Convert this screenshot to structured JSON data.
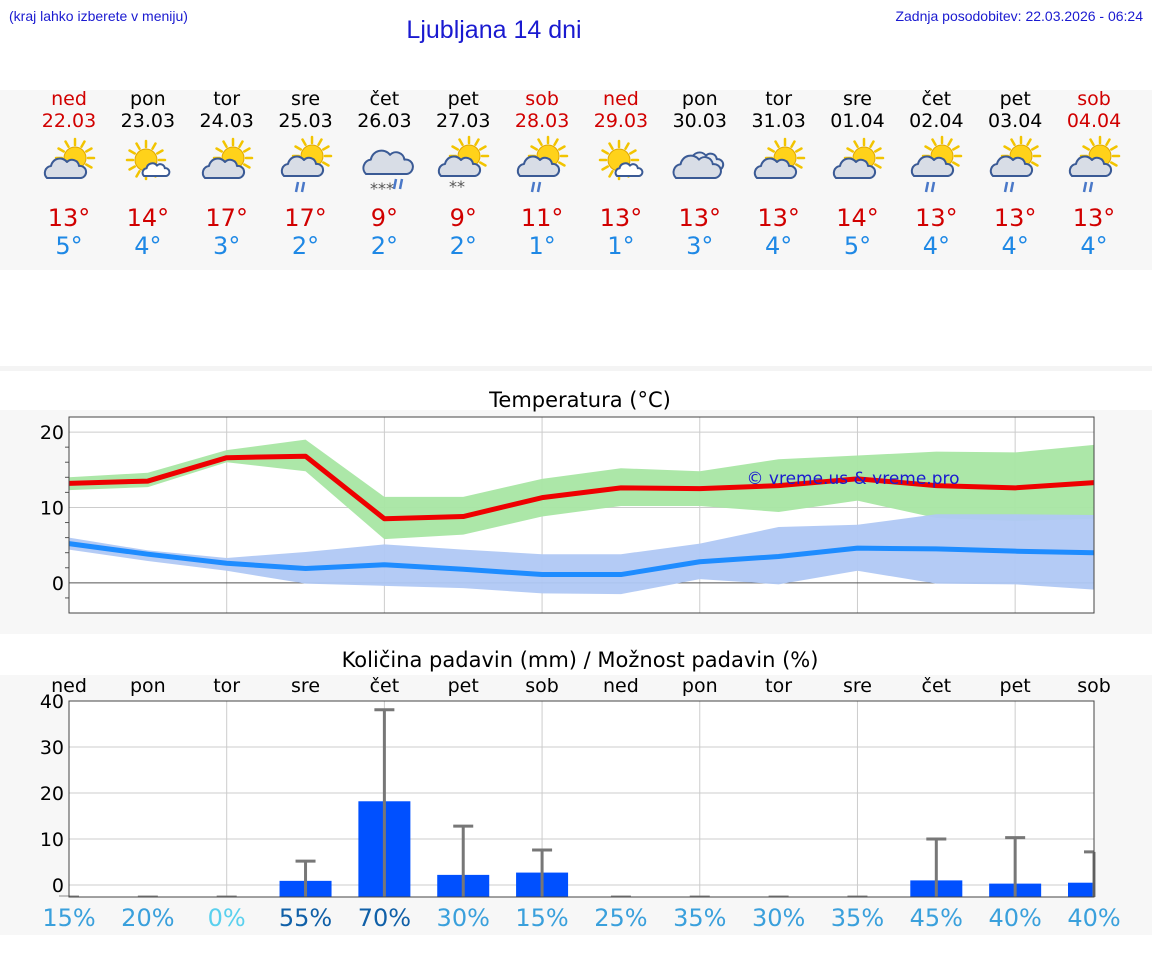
{
  "header": {
    "hint": "(kraj lahko izberete v meniju)",
    "title": "Ljubljana 14 dni",
    "updated": "Zadnja posodobitev: 22.03.2026 - 06:24"
  },
  "days": [
    {
      "name": "ned",
      "date": "22.03",
      "weekend": true,
      "icon": "partly-cloudy-icon",
      "hi": "13°",
      "lo": "5°"
    },
    {
      "name": "pon",
      "date": "23.03",
      "weekend": false,
      "icon": "sun-small-cloud-icon",
      "hi": "14°",
      "lo": "4°"
    },
    {
      "name": "tor",
      "date": "24.03",
      "weekend": false,
      "icon": "partly-cloudy-icon",
      "hi": "17°",
      "lo": "3°"
    },
    {
      "name": "sre",
      "date": "25.03",
      "weekend": false,
      "icon": "sun-cloud-rain-icon",
      "hi": "17°",
      "lo": "2°"
    },
    {
      "name": "čet",
      "date": "26.03",
      "weekend": false,
      "icon": "cloud-rain-snow-icon",
      "hi": "9°",
      "lo": "2°"
    },
    {
      "name": "pet",
      "date": "27.03",
      "weekend": false,
      "icon": "sun-cloud-snow-icon",
      "hi": "9°",
      "lo": "2°"
    },
    {
      "name": "sob",
      "date": "28.03",
      "weekend": true,
      "icon": "sun-cloud-rain-icon",
      "hi": "11°",
      "lo": "1°"
    },
    {
      "name": "ned",
      "date": "29.03",
      "weekend": true,
      "icon": "sun-small-cloud-icon",
      "hi": "13°",
      "lo": "1°"
    },
    {
      "name": "pon",
      "date": "30.03",
      "weekend": false,
      "icon": "cloudy-icon",
      "hi": "13°",
      "lo": "3°"
    },
    {
      "name": "tor",
      "date": "31.03",
      "weekend": false,
      "icon": "partly-cloudy-icon",
      "hi": "13°",
      "lo": "4°"
    },
    {
      "name": "sre",
      "date": "01.04",
      "weekend": false,
      "icon": "partly-cloudy-icon",
      "hi": "14°",
      "lo": "5°"
    },
    {
      "name": "čet",
      "date": "02.04",
      "weekend": false,
      "icon": "sun-cloud-rain-icon",
      "hi": "13°",
      "lo": "4°"
    },
    {
      "name": "pet",
      "date": "03.04",
      "weekend": false,
      "icon": "sun-cloud-rain-icon",
      "hi": "13°",
      "lo": "4°"
    },
    {
      "name": "sob",
      "date": "04.04",
      "weekend": true,
      "icon": "sun-cloud-rain-icon",
      "hi": "13°",
      "lo": "4°"
    }
  ],
  "colors": {
    "weekend": "#d10000",
    "hi_line": "#ee0000",
    "hi_band": "#a8e6a3",
    "lo_line": "#1e8cff",
    "lo_band": "#b0c8f4",
    "bar": "#0050ff",
    "whisker": "#777777"
  },
  "chart_data": [
    {
      "type": "line",
      "title": "Temperatura (°C)",
      "watermark": "© vreme.us & vreme.pro",
      "x": [
        0,
        1,
        2,
        3,
        4,
        5,
        6,
        7,
        8,
        9,
        10,
        11,
        12,
        13
      ],
      "ylim": [
        -4,
        22
      ],
      "yticks": [
        0,
        10,
        20
      ],
      "series": [
        {
          "values": [
            13.2,
            13.5,
            16.6,
            16.8,
            8.5,
            8.8,
            11.3,
            12.6,
            12.5,
            12.9,
            13.8,
            12.9,
            12.6,
            13.3
          ],
          "band_upper": [
            14.0,
            14.6,
            17.6,
            19.0,
            11.4,
            11.4,
            13.8,
            15.2,
            14.8,
            16.4,
            16.9,
            17.4,
            17.3,
            18.3
          ],
          "band_lower": [
            12.3,
            12.7,
            16.0,
            14.8,
            5.8,
            6.4,
            8.8,
            10.2,
            10.2,
            9.4,
            10.9,
            8.6,
            8.2,
            8.5
          ]
        },
        {
          "values": [
            5.2,
            3.8,
            2.6,
            1.9,
            2.4,
            1.8,
            1.1,
            1.1,
            2.8,
            3.5,
            4.6,
            4.5,
            4.2,
            4.0
          ],
          "band_upper": [
            6.0,
            4.3,
            3.3,
            4.1,
            5.1,
            4.4,
            3.8,
            3.8,
            5.2,
            7.4,
            7.7,
            9.1,
            9.1,
            9.0
          ],
          "band_lower": [
            4.4,
            2.9,
            1.6,
            -0.1,
            -0.4,
            -0.7,
            -1.4,
            -1.5,
            0.5,
            -0.2,
            1.6,
            -0.1,
            -0.2,
            -0.9
          ]
        }
      ],
      "grid": true
    },
    {
      "type": "bar",
      "title": "Količina padavin (mm) / Možnost padavin (%)",
      "categories": [
        "ned",
        "pon",
        "tor",
        "sre",
        "čet",
        "pet",
        "sob",
        "ned",
        "pon",
        "tor",
        "sre",
        "čet",
        "pet",
        "sob"
      ],
      "values": [
        0,
        0,
        0,
        0.9,
        18.2,
        2.2,
        2.7,
        0,
        0,
        0,
        0,
        1,
        0.3,
        0.5
      ],
      "whisker_max": [
        0,
        0,
        0,
        5.2,
        38.1,
        12.8,
        7.6,
        0,
        0,
        0,
        0,
        10.0,
        10.3,
        7.2
      ],
      "probability": [
        "15%",
        "20%",
        "0%",
        "55%",
        "70%",
        "30%",
        "15%",
        "25%",
        "35%",
        "30%",
        "35%",
        "45%",
        "40%",
        "40%"
      ],
      "probability_colors": [
        "#3aa0dc",
        "#3aa0dc",
        "#5ad0ee",
        "#1060a8",
        "#1060a8",
        "#3aa0dc",
        "#3aa0dc",
        "#3aa0dc",
        "#3aa0dc",
        "#3aa0dc",
        "#3aa0dc",
        "#3aa0dc",
        "#3aa0dc",
        "#3aa0dc"
      ],
      "ylim": [
        0,
        40
      ],
      "yticks": [
        0,
        10,
        20,
        30,
        40
      ],
      "grid": true
    }
  ]
}
